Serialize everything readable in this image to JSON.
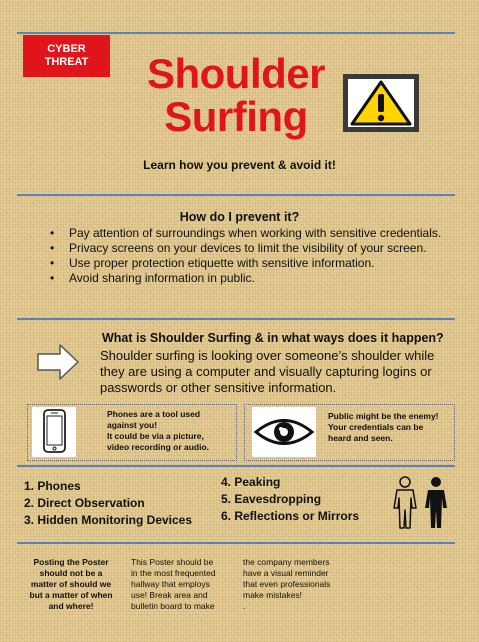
{
  "badge": {
    "line1": "CYBER",
    "line2": "THREAT"
  },
  "title": {
    "line1": "Shoulder",
    "line2": "Surfing"
  },
  "subtitle": "Learn how you prevent & avoid it!",
  "prevent": {
    "heading": "How do I prevent it?",
    "items": [
      "Pay attention of surroundings when working with sensitive credentials.",
      "Privacy screens on your devices to limit the visibility of your screen.",
      "Use proper protection etiquette with sensitive information.",
      "Avoid sharing information in public."
    ]
  },
  "what": {
    "heading": "What is Shoulder Surfing & in what ways does it happen?",
    "body": "Shoulder surfing is looking over someone’s shoulder while they are using a computer and visually capturing logins or passwords or other sensitive information."
  },
  "phones_note": {
    "lines": [
      "Phones are a tool used",
      "against you!",
      "It could be via a picture,",
      "video recording or audio."
    ]
  },
  "public_note": {
    "lines": [
      "Public might be the enemy!",
      "Your credentials can be",
      "heard and seen."
    ]
  },
  "ways_left": [
    "1.  Phones",
    "2.  Direct Observation",
    "3.  Hidden Monitoring Devices"
  ],
  "ways_right": [
    "4. Peaking",
    "5. Eavesdropping",
    "6. Reflections or Mirrors"
  ],
  "footer": {
    "col1": [
      "Posting the Poster",
      "should not be a",
      "matter of should we",
      "but a matter of when",
      "and where!"
    ],
    "col2": [
      "This Poster should be",
      "in the most frequented",
      "hallway that employs",
      "use! Break area and",
      "bulletin board to make"
    ],
    "col3": [
      "the company members",
      "have a visual reminder",
      "that even professionals",
      "make mistakes!",
      "."
    ]
  },
  "colors": {
    "accent_red": "#e0151b",
    "rule_blue": "#5b7fbf",
    "background": "#e2c98f",
    "warning_yellow": "#ffd400"
  },
  "icons": [
    "warning-icon",
    "arrow-right-icon",
    "phone-icon",
    "eye-icon",
    "people-icon"
  ]
}
